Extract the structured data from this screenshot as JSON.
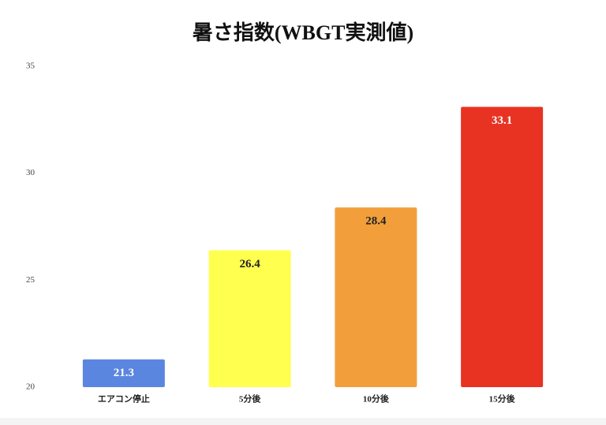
{
  "chart_data": {
    "type": "bar",
    "title": "暑さ指数(WBGT実測値)",
    "categories": [
      "エアコン停止",
      "5分後",
      "10分後",
      "15分後"
    ],
    "values": [
      21.3,
      26.4,
      28.4,
      33.1
    ],
    "colors": [
      "#5b86df",
      "#ffff4f",
      "#f29f3b",
      "#e83323"
    ],
    "ylim": [
      20,
      35
    ],
    "yticks": [
      20,
      25,
      30,
      35
    ],
    "grid": false
  }
}
